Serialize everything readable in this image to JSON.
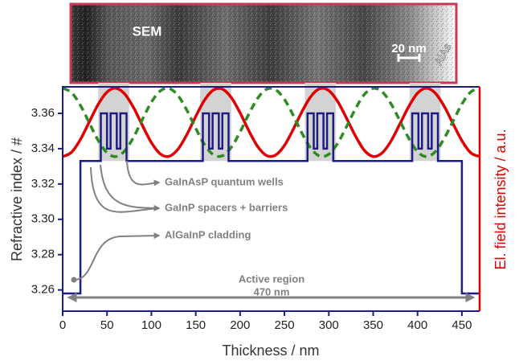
{
  "chart_data": {
    "type": "line",
    "xlabel": "Thickness / nm",
    "ylabel": "Refractive index / #",
    "y2label": "El. field intensity / a.u.",
    "xlim": [
      0,
      470
    ],
    "ylim": [
      3.248,
      3.375
    ],
    "y2lim": [
      -2.26,
      1.02
    ],
    "xticks": [
      0,
      50,
      100,
      150,
      200,
      250,
      300,
      350,
      400,
      450
    ],
    "yticks": [
      3.26,
      3.28,
      {
        "value": 3.3,
        "label": "3.30"
      },
      3.32,
      3.34,
      3.36
    ],
    "shaded_regions": [
      [
        40,
        75
      ],
      [
        155,
        190
      ],
      [
        273,
        308
      ],
      [
        391,
        426
      ]
    ],
    "shade_color": "#d3d3d3",
    "series": [
      {
        "color": "#1c1c82",
        "dashed": false,
        "x": [
          0,
          20,
          20,
          43,
          43,
          50,
          50,
          54,
          54,
          61,
          61,
          65,
          65,
          72,
          72,
          158,
          158,
          165,
          165,
          169,
          169,
          176,
          176,
          180,
          180,
          187,
          187,
          276,
          276,
          283,
          283,
          287,
          287,
          294,
          294,
          298,
          298,
          305,
          305,
          394,
          394,
          401,
          401,
          405,
          405,
          412,
          412,
          416,
          416,
          423,
          423,
          450,
          450,
          470
        ],
        "values": [
          3.258,
          3.258,
          3.333,
          3.333,
          3.36,
          3.36,
          3.34,
          3.34,
          3.36,
          3.36,
          3.34,
          3.34,
          3.36,
          3.36,
          3.333,
          3.333,
          3.36,
          3.36,
          3.34,
          3.34,
          3.36,
          3.36,
          3.34,
          3.34,
          3.36,
          3.36,
          3.333,
          3.333,
          3.36,
          3.36,
          3.34,
          3.34,
          3.36,
          3.36,
          3.34,
          3.34,
          3.36,
          3.36,
          3.333,
          3.333,
          3.36,
          3.36,
          3.34,
          3.34,
          3.36,
          3.36,
          3.34,
          3.34,
          3.36,
          3.36,
          3.333,
          3.333,
          3.258,
          3.258
        ]
      },
      {
        "color": "#e00000",
        "dashed": false,
        "axis": "y2",
        "x": [
          0,
          10,
          20,
          30,
          40,
          50,
          60,
          70,
          80,
          90,
          100,
          110,
          120,
          130,
          140,
          150,
          160,
          170,
          180,
          190,
          200,
          210,
          220,
          230,
          240,
          250,
          260,
          270,
          280,
          290,
          300,
          310,
          320,
          330,
          340,
          350,
          360,
          370,
          380,
          390,
          400,
          410,
          420,
          430,
          440,
          450,
          460,
          470
        ],
        "values": [
          0.0,
          0.064,
          0.25,
          0.507,
          0.763,
          0.943,
          1.0,
          0.915,
          0.714,
          0.453,
          0.205,
          0.04,
          0.004,
          0.108,
          0.322,
          0.587,
          0.827,
          0.974,
          0.988,
          0.865,
          0.64,
          0.374,
          0.144,
          0.014,
          0.022,
          0.163,
          0.4,
          0.664,
          0.883,
          0.994,
          0.965,
          0.805,
          0.561,
          0.302,
          0.092,
          0.002,
          0.052,
          0.225,
          0.474,
          0.729,
          0.928,
          1.0,
          0.929,
          0.736,
          0.482,
          0.233,
          0.055,
          0.001
        ]
      },
      {
        "color": "#2e8b22",
        "dashed": true,
        "axis": "y2",
        "x": [
          0,
          10,
          20,
          30,
          40,
          50,
          60,
          70,
          80,
          90,
          100,
          110,
          120,
          130,
          140,
          150,
          160,
          170,
          180,
          190,
          200,
          210,
          220,
          230,
          240,
          250,
          260,
          270,
          280,
          290,
          300,
          310,
          320,
          330,
          340,
          350,
          360,
          370,
          380,
          390,
          400,
          410,
          420,
          430,
          440,
          450,
          460,
          470
        ],
        "values": [
          1.0,
          0.936,
          0.75,
          0.493,
          0.237,
          0.057,
          0.0,
          0.085,
          0.286,
          0.547,
          0.795,
          0.96,
          0.996,
          0.892,
          0.678,
          0.413,
          0.173,
          0.026,
          0.012,
          0.135,
          0.36,
          0.626,
          0.856,
          0.986,
          0.978,
          0.837,
          0.6,
          0.336,
          0.117,
          0.006,
          0.035,
          0.195,
          0.439,
          0.698,
          0.908,
          0.998,
          0.948,
          0.775,
          0.526,
          0.271,
          0.072,
          0.0,
          0.071,
          0.264,
          0.518,
          0.767,
          0.945,
          0.999
        ]
      }
    ],
    "annotations": [
      "GaInAsP quantum wells",
      "GaInP spacers + barriers",
      "AlGaInP cladding",
      "Active region",
      "470 nm"
    ],
    "inset": {
      "label": "SEM",
      "scale_bar": "20 nm",
      "layer": "AlAs"
    }
  }
}
